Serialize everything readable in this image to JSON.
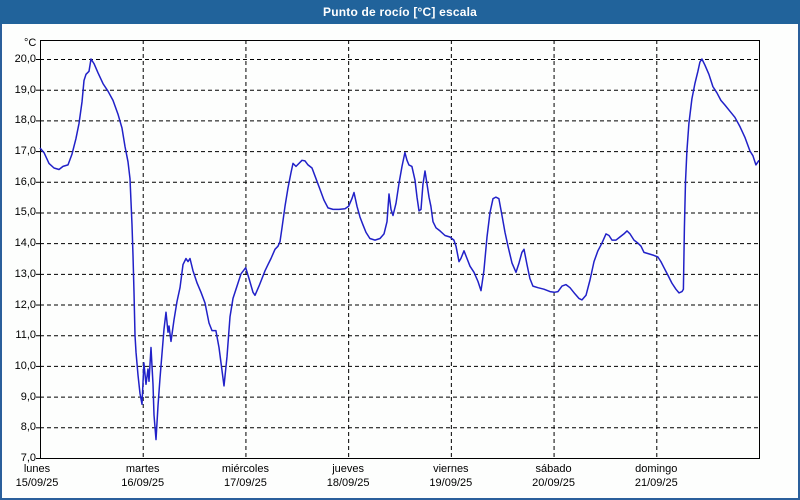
{
  "window": {
    "title": "Punto de rocío [°C] escala"
  },
  "colors": {
    "titlebar_bg": "#21639b",
    "window_border": "#2a5f9b",
    "line": "#2121c8",
    "grid": "#000000",
    "text": "#000000",
    "plot_bg": "#ffffff"
  },
  "chart_data": {
    "type": "line",
    "title": "Punto de rocío [°C] escala",
    "ylabel": "°C",
    "ylim": [
      7,
      20
    ],
    "ytick_step": 1,
    "ytick_labels": [
      "20,0",
      "19,0",
      "18,0",
      "17,0",
      "16,0",
      "15,0",
      "14,0",
      "13,0",
      "12,0",
      "11,0",
      "10,0",
      "9,0",
      "8,0",
      "7,0"
    ],
    "grid": true,
    "legend": "none",
    "x_unit": "days_from_monday_00h",
    "xlim": [
      0,
      7
    ],
    "x_categories": [
      {
        "day": "lunes",
        "date": "15/09/25"
      },
      {
        "day": "martes",
        "date": "16/09/25"
      },
      {
        "day": "miércoles",
        "date": "17/09/25"
      },
      {
        "day": "jueves",
        "date": "18/09/25"
      },
      {
        "day": "viernes",
        "date": "19/09/25"
      },
      {
        "day": "sábado",
        "date": "20/09/25"
      },
      {
        "day": "domingo",
        "date": "21/09/25"
      }
    ],
    "series_name": "Punto de rocío",
    "points": [
      [
        0.0,
        17.1
      ],
      [
        0.039,
        16.95
      ],
      [
        0.088,
        16.6
      ],
      [
        0.136,
        16.45
      ],
      [
        0.185,
        16.4
      ],
      [
        0.224,
        16.5
      ],
      [
        0.273,
        16.55
      ],
      [
        0.312,
        16.9
      ],
      [
        0.35,
        17.4
      ],
      [
        0.38,
        17.9
      ],
      [
        0.409,
        18.6
      ],
      [
        0.428,
        19.3
      ],
      [
        0.448,
        19.5
      ],
      [
        0.477,
        19.6
      ],
      [
        0.497,
        20.0
      ],
      [
        0.526,
        19.85
      ],
      [
        0.565,
        19.55
      ],
      [
        0.613,
        19.2
      ],
      [
        0.662,
        18.95
      ],
      [
        0.711,
        18.65
      ],
      [
        0.759,
        18.2
      ],
      [
        0.798,
        17.75
      ],
      [
        0.828,
        17.15
      ],
      [
        0.857,
        16.65
      ],
      [
        0.876,
        16.1
      ],
      [
        0.896,
        14.6
      ],
      [
        0.905,
        13.6
      ],
      [
        0.915,
        12.4
      ],
      [
        0.925,
        11.0
      ],
      [
        0.935,
        10.45
      ],
      [
        0.954,
        9.7
      ],
      [
        0.974,
        9.1
      ],
      [
        0.993,
        8.75
      ],
      [
        1.012,
        10.1
      ],
      [
        1.032,
        9.4
      ],
      [
        1.051,
        9.9
      ],
      [
        1.061,
        9.5
      ],
      [
        1.081,
        10.6
      ],
      [
        1.1,
        9.4
      ],
      [
        1.11,
        8.4
      ],
      [
        1.129,
        7.6
      ],
      [
        1.149,
        8.7
      ],
      [
        1.168,
        9.6
      ],
      [
        1.188,
        10.4
      ],
      [
        1.207,
        11.2
      ],
      [
        1.227,
        11.75
      ],
      [
        1.246,
        11.1
      ],
      [
        1.256,
        11.3
      ],
      [
        1.275,
        10.8
      ],
      [
        1.305,
        11.5
      ],
      [
        1.334,
        12.1
      ],
      [
        1.363,
        12.55
      ],
      [
        1.392,
        13.3
      ],
      [
        1.421,
        13.5
      ],
      [
        1.441,
        13.4
      ],
      [
        1.46,
        13.5
      ],
      [
        1.49,
        13.1
      ],
      [
        1.529,
        12.7
      ],
      [
        1.567,
        12.4
      ],
      [
        1.606,
        12.05
      ],
      [
        1.645,
        11.4
      ],
      [
        1.675,
        11.15
      ],
      [
        1.713,
        11.15
      ],
      [
        1.743,
        10.6
      ],
      [
        1.772,
        9.85
      ],
      [
        1.791,
        9.35
      ],
      [
        1.821,
        10.3
      ],
      [
        1.85,
        11.6
      ],
      [
        1.879,
        12.2
      ],
      [
        1.918,
        12.6
      ],
      [
        1.957,
        13.0
      ],
      [
        2.003,
        13.2
      ],
      [
        2.035,
        12.85
      ],
      [
        2.074,
        12.4
      ],
      [
        2.093,
        12.3
      ],
      [
        2.132,
        12.6
      ],
      [
        2.161,
        12.85
      ],
      [
        2.191,
        13.1
      ],
      [
        2.22,
        13.3
      ],
      [
        2.249,
        13.5
      ],
      [
        2.288,
        13.8
      ],
      [
        2.317,
        13.9
      ],
      [
        2.337,
        14.05
      ],
      [
        2.356,
        14.5
      ],
      [
        2.385,
        15.2
      ],
      [
        2.414,
        15.8
      ],
      [
        2.444,
        16.3
      ],
      [
        2.463,
        16.6
      ],
      [
        2.492,
        16.5
      ],
      [
        2.522,
        16.6
      ],
      [
        2.551,
        16.7
      ],
      [
        2.58,
        16.68
      ],
      [
        2.609,
        16.55
      ],
      [
        2.648,
        16.45
      ],
      [
        2.687,
        16.1
      ],
      [
        2.726,
        15.75
      ],
      [
        2.765,
        15.4
      ],
      [
        2.804,
        15.15
      ],
      [
        2.853,
        15.1
      ],
      [
        2.911,
        15.1
      ],
      [
        2.969,
        15.12
      ],
      [
        3.004,
        15.2
      ],
      [
        3.037,
        15.45
      ],
      [
        3.057,
        15.65
      ],
      [
        3.086,
        15.2
      ],
      [
        3.115,
        14.85
      ],
      [
        3.144,
        14.6
      ],
      [
        3.174,
        14.35
      ],
      [
        3.212,
        14.15
      ],
      [
        3.261,
        14.1
      ],
      [
        3.31,
        14.15
      ],
      [
        3.349,
        14.3
      ],
      [
        3.378,
        14.7
      ],
      [
        3.398,
        15.6
      ],
      [
        3.417,
        15.1
      ],
      [
        3.437,
        14.9
      ],
      [
        3.466,
        15.3
      ],
      [
        3.495,
        15.95
      ],
      [
        3.524,
        16.5
      ],
      [
        3.553,
        16.95
      ],
      [
        3.573,
        16.7
      ],
      [
        3.592,
        16.55
      ],
      [
        3.621,
        16.5
      ],
      [
        3.651,
        16.05
      ],
      [
        3.67,
        15.5
      ],
      [
        3.69,
        15.05
      ],
      [
        3.709,
        15.1
      ],
      [
        3.728,
        15.9
      ],
      [
        3.748,
        16.35
      ],
      [
        3.767,
        15.95
      ],
      [
        3.787,
        15.5
      ],
      [
        3.806,
        15.2
      ],
      [
        3.826,
        14.7
      ],
      [
        3.855,
        14.5
      ],
      [
        3.894,
        14.4
      ],
      [
        3.943,
        14.25
      ],
      [
        3.991,
        14.2
      ],
      [
        4.03,
        14.1
      ],
      [
        4.05,
        13.9
      ],
      [
        4.079,
        13.4
      ],
      [
        4.098,
        13.5
      ],
      [
        4.128,
        13.75
      ],
      [
        4.157,
        13.5
      ],
      [
        4.186,
        13.25
      ],
      [
        4.225,
        13.05
      ],
      [
        4.264,
        12.75
      ],
      [
        4.293,
        12.45
      ],
      [
        4.322,
        13.1
      ],
      [
        4.352,
        14.2
      ],
      [
        4.381,
        15.0
      ],
      [
        4.41,
        15.45
      ],
      [
        4.439,
        15.5
      ],
      [
        4.468,
        15.45
      ],
      [
        4.498,
        14.9
      ],
      [
        4.527,
        14.35
      ],
      [
        4.556,
        13.9
      ],
      [
        4.595,
        13.35
      ],
      [
        4.634,
        13.05
      ],
      [
        4.663,
        13.35
      ],
      [
        4.692,
        13.7
      ],
      [
        4.712,
        13.8
      ],
      [
        4.741,
        13.3
      ],
      [
        4.77,
        12.85
      ],
      [
        4.799,
        12.6
      ],
      [
        4.848,
        12.55
      ],
      [
        4.906,
        12.5
      ],
      [
        4.965,
        12.42
      ],
      [
        5.007,
        12.4
      ],
      [
        5.043,
        12.42
      ],
      [
        5.082,
        12.6
      ],
      [
        5.121,
        12.65
      ],
      [
        5.16,
        12.55
      ],
      [
        5.208,
        12.35
      ],
      [
        5.247,
        12.2
      ],
      [
        5.277,
        12.15
      ],
      [
        5.316,
        12.3
      ],
      [
        5.355,
        12.8
      ],
      [
        5.394,
        13.4
      ],
      [
        5.432,
        13.75
      ],
      [
        5.471,
        14.0
      ],
      [
        5.51,
        14.3
      ],
      [
        5.54,
        14.25
      ],
      [
        5.569,
        14.1
      ],
      [
        5.608,
        14.1
      ],
      [
        5.646,
        14.2
      ],
      [
        5.685,
        14.3
      ],
      [
        5.715,
        14.4
      ],
      [
        5.744,
        14.3
      ],
      [
        5.783,
        14.1
      ],
      [
        5.822,
        14.0
      ],
      [
        5.851,
        13.9
      ],
      [
        5.88,
        13.7
      ],
      [
        5.929,
        13.65
      ],
      [
        5.977,
        13.6
      ],
      [
        6.016,
        13.55
      ],
      [
        6.045,
        13.4
      ],
      [
        6.075,
        13.2
      ],
      [
        6.114,
        12.95
      ],
      [
        6.152,
        12.7
      ],
      [
        6.191,
        12.5
      ],
      [
        6.221,
        12.38
      ],
      [
        6.25,
        12.42
      ],
      [
        6.264,
        12.5
      ],
      [
        6.274,
        14.5
      ],
      [
        6.284,
        16.0
      ],
      [
        6.298,
        17.0
      ],
      [
        6.318,
        17.9
      ],
      [
        6.347,
        18.7
      ],
      [
        6.376,
        19.2
      ],
      [
        6.405,
        19.6
      ],
      [
        6.425,
        19.9
      ],
      [
        6.444,
        20.0
      ],
      [
        6.473,
        19.8
      ],
      [
        6.512,
        19.5
      ],
      [
        6.551,
        19.1
      ],
      [
        6.59,
        18.9
      ],
      [
        6.629,
        18.65
      ],
      [
        6.668,
        18.5
      ],
      [
        6.717,
        18.3
      ],
      [
        6.765,
        18.1
      ],
      [
        6.814,
        17.8
      ],
      [
        6.863,
        17.45
      ],
      [
        6.912,
        17.0
      ],
      [
        6.941,
        16.85
      ],
      [
        6.97,
        16.55
      ],
      [
        6.99,
        16.65
      ],
      [
        7.0,
        16.7
      ]
    ]
  }
}
